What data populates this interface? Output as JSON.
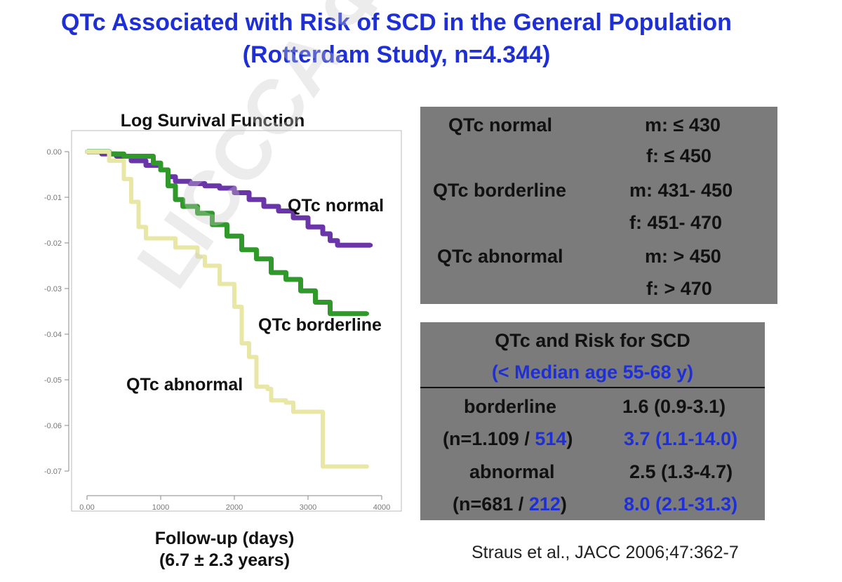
{
  "title": {
    "line1": "QTc Associated with Risk of SCD in the General Population",
    "line2": "(Rotterdam Study, n=4.344)"
  },
  "chart_data": {
    "type": "line",
    "title": "Log Survival Function",
    "xlabel": "Follow-up (days)",
    "xlabel_sub": "(6.7 ± 2.3 years)",
    "xlim": [
      0,
      4000
    ],
    "ylim": [
      -0.075,
      0.0
    ],
    "xticks": [
      0,
      1000,
      2000,
      3000,
      4000
    ],
    "xtick_labels": [
      "0.00",
      "1000",
      "2000",
      "3000",
      "4000"
    ],
    "yticks": [
      0.0,
      -0.01,
      -0.02,
      -0.03,
      -0.04,
      -0.05,
      -0.06,
      -0.07
    ],
    "ytick_labels": [
      "0.00",
      "-0.01",
      "-0.02",
      "-0.03",
      "-0.04",
      "-0.05",
      "-0.06",
      "-0.07"
    ],
    "grid": false,
    "series": [
      {
        "name": "QTc normal",
        "color": "#6a35a8",
        "x": [
          0,
          200,
          400,
          600,
          800,
          1000,
          1100,
          1200,
          1400,
          1600,
          1800,
          2000,
          2200,
          2400,
          2600,
          2800,
          3000,
          3200,
          3300,
          3400,
          3500,
          3650,
          3850
        ],
        "y": [
          0,
          -0.0005,
          -0.001,
          -0.002,
          -0.003,
          -0.004,
          -0.0055,
          -0.0065,
          -0.007,
          -0.0075,
          -0.008,
          -0.009,
          -0.0105,
          -0.012,
          -0.013,
          -0.0145,
          -0.0165,
          -0.018,
          -0.0195,
          -0.0205,
          -0.0205,
          -0.0205,
          -0.0205
        ]
      },
      {
        "name": "QTc borderline",
        "color": "#2f9a2a",
        "x": [
          0,
          300,
          500,
          700,
          900,
          1000,
          1100,
          1200,
          1300,
          1500,
          1700,
          1900,
          2100,
          2300,
          2500,
          2700,
          2900,
          3100,
          3300,
          3400,
          3600,
          3800
        ],
        "y": [
          0,
          -0.0005,
          -0.001,
          -0.001,
          -0.0025,
          -0.004,
          -0.0075,
          -0.0105,
          -0.012,
          -0.0135,
          -0.016,
          -0.0185,
          -0.0215,
          -0.0235,
          -0.0265,
          -0.028,
          -0.0305,
          -0.033,
          -0.0355,
          -0.0355,
          -0.0355,
          -0.0355
        ]
      },
      {
        "name": "QTc abnormal",
        "color": "#e8e7a6",
        "x": [
          0,
          300,
          500,
          600,
          700,
          800,
          1000,
          1150,
          1200,
          1300,
          1500,
          1600,
          1800,
          2000,
          2100,
          2200,
          2300,
          2450,
          2500,
          2700,
          2800,
          3100,
          3200,
          3800
        ],
        "y": [
          0,
          -0.002,
          -0.006,
          -0.011,
          -0.0165,
          -0.019,
          -0.019,
          -0.019,
          -0.021,
          -0.021,
          -0.023,
          -0.025,
          -0.029,
          -0.034,
          -0.042,
          -0.045,
          -0.0515,
          -0.052,
          -0.0545,
          -0.055,
          -0.057,
          -0.057,
          -0.069,
          -0.069
        ]
      }
    ],
    "annotations": [
      {
        "text": "QTc normal"
      },
      {
        "text": "QTc borderline"
      },
      {
        "text": "QTc abnormal"
      }
    ]
  },
  "criteria": {
    "rows": [
      {
        "label": "QTc normal",
        "m": "m: ≤ 430",
        "f": "f:  ≤ 450"
      },
      {
        "label": "QTc borderline",
        "m": "m: 431- 450",
        "f": "f:   451- 470"
      },
      {
        "label": "QTc abnormal",
        "m": "m: > 450",
        "f": "f:  > 470"
      }
    ]
  },
  "risk": {
    "header": "QTc and Risk for SCD",
    "subheader": "(< Median age 55-68 y)",
    "rows": [
      {
        "label": "borderline",
        "n_prefix": "(n=1.109 / ",
        "n_blue": "514",
        "n_suffix": ")",
        "value": "1.6 (0.9-3.1)",
        "value_blue": "3.7 (1.1-14.0)"
      },
      {
        "label": "abnormal",
        "n_prefix": "(n=681 / ",
        "n_blue": "212",
        "n_suffix": ")",
        "value": "2.5 (1.3-4.7)",
        "value_blue": "8.0 (2.1-31.3)"
      }
    ]
  },
  "citation": "Straus et al., JACC 2006;47:362-7",
  "watermark": "LICCCA ФМБА"
}
